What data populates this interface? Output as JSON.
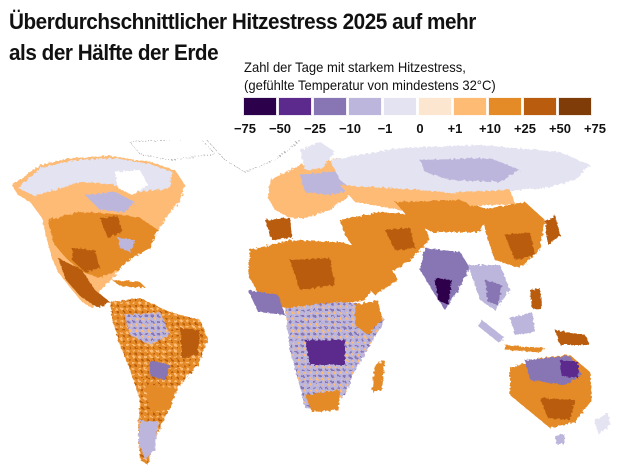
{
  "title": {
    "line1": "Überdurchschnittlicher Hitzestress 2025 auf mehr",
    "line2": "als der Hälfte der Erde"
  },
  "legend": {
    "caption_line1": "Zahl der Tage mit starkem Hitzestress,",
    "caption_line2": "(gefühlte Temperatur von mindestens 32°C)",
    "swatches": [
      {
        "color": "#2d004b",
        "range": "-75 to -50"
      },
      {
        "color": "#5b2a8c",
        "range": "-50 to -25"
      },
      {
        "color": "#8876b4",
        "range": "-25 to -10"
      },
      {
        "color": "#bdb6dc",
        "range": "-10 to -1"
      },
      {
        "color": "#e4e3f1",
        "range": "-1 to 0"
      },
      {
        "color": "#fde6cf",
        "range": "0 to +1"
      },
      {
        "color": "#fdbb74",
        "range": "+1 to +10"
      },
      {
        "color": "#e48a27",
        "range": "+10 to +25"
      },
      {
        "color": "#b95c0e",
        "range": "+25 to +50"
      },
      {
        "color": "#7f3b08",
        "range": "+50 to +75"
      }
    ],
    "ticks": [
      "−75",
      "−50",
      "−25",
      "−10",
      "−1",
      "0",
      "+1",
      "+10",
      "+25",
      "+50",
      "+75"
    ]
  },
  "map": {
    "description": "World map showing anomaly in number of days with strong heat stress in 2025; orange = more days than average, purple = fewer days",
    "regions": [
      {
        "name": "North America",
        "trend": "mostly above average (orange), purple/light in Canada"
      },
      {
        "name": "Central America & Mexico",
        "trend": "strongly above average (dark orange)"
      },
      {
        "name": "South America",
        "trend": "mixed; Amazon purple patches, eastern Brazil and Argentina orange"
      },
      {
        "name": "Europe",
        "trend": "above average in south, light purple in north-east"
      },
      {
        "name": "Africa",
        "trend": "Sahara/North orange, southern-central Africa purple"
      },
      {
        "name": "Middle East & Central Asia",
        "trend": "strongly above average (dark orange)"
      },
      {
        "name": "Russia/Siberia",
        "trend": "light purple, below average"
      },
      {
        "name": "India",
        "trend": "below average (dark purple) in centre/south"
      },
      {
        "name": "China & Japan",
        "trend": "above average (orange)"
      },
      {
        "name": "Southeast Asia",
        "trend": "mixed, mostly light purple"
      },
      {
        "name": "Australia",
        "trend": "north purple, south orange"
      }
    ]
  }
}
